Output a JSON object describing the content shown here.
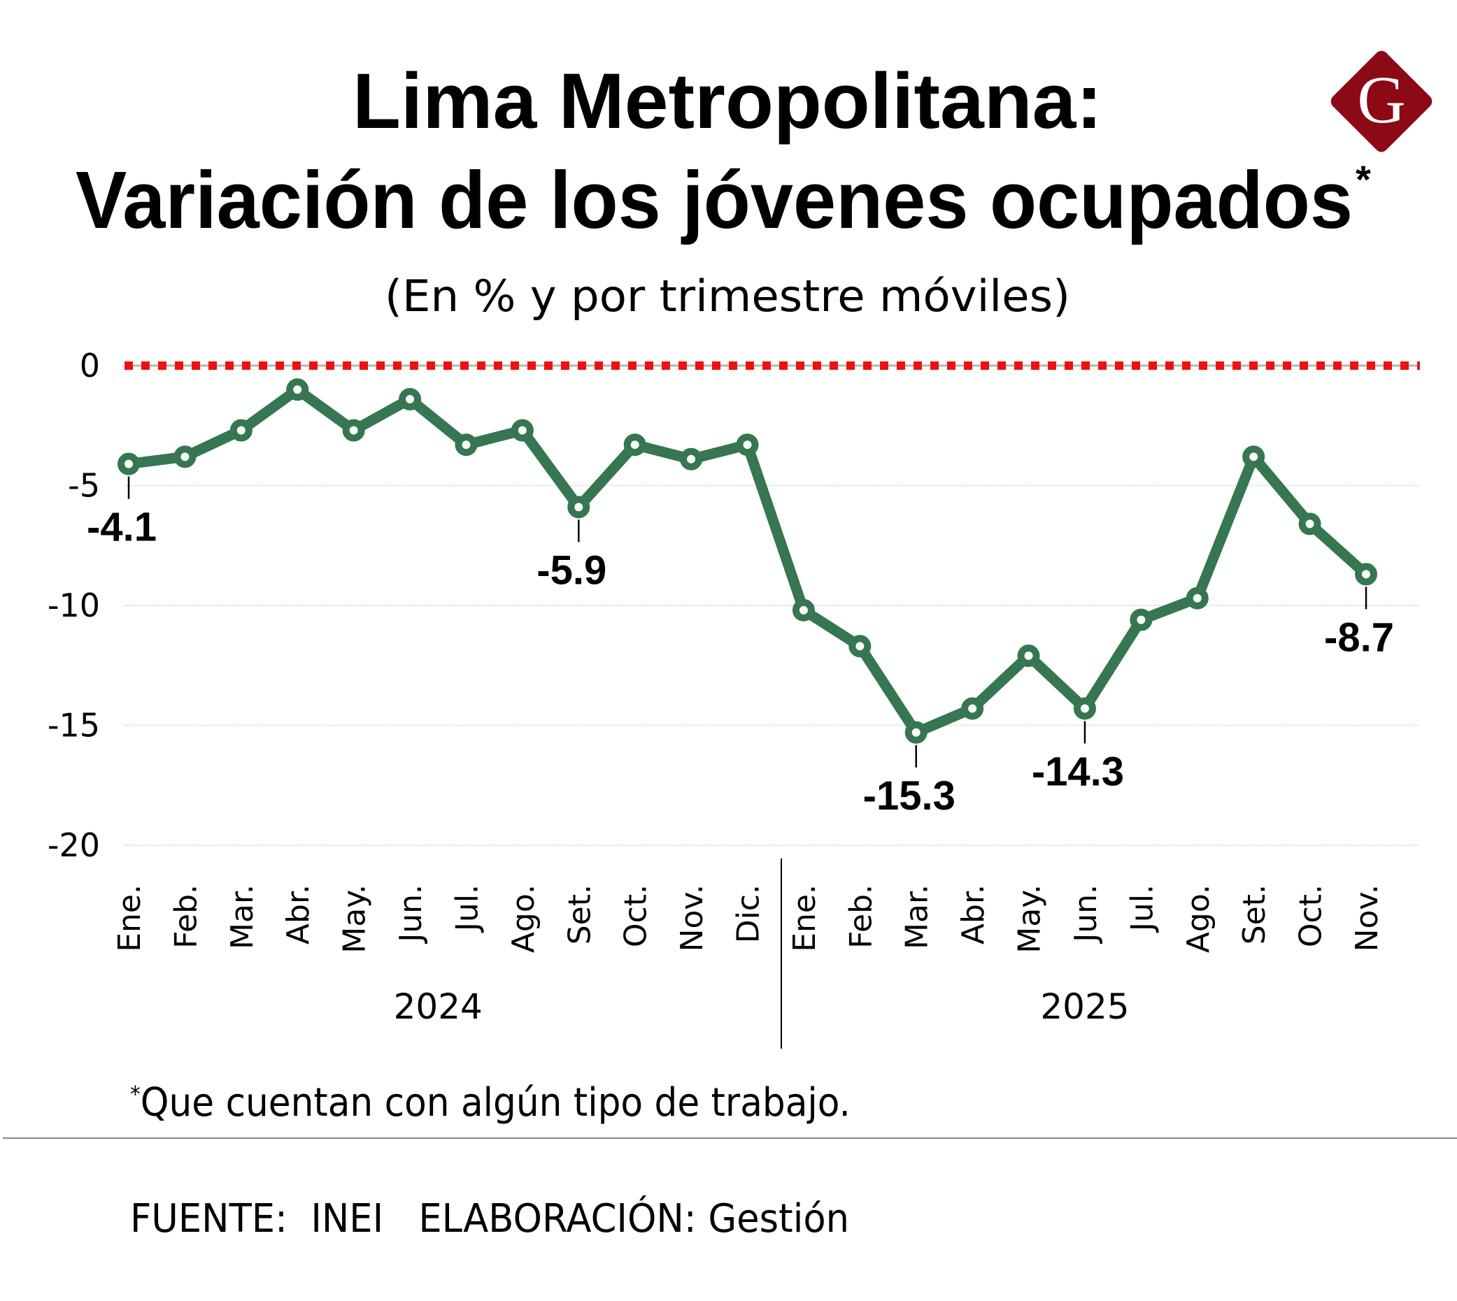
{
  "header": {
    "title_line1": "Lima Metropolitana:",
    "title_line2": "Variación de los jóvenes ocupados",
    "title_asterisk": "*",
    "subtitle": "(En % y por trimestre móviles)",
    "logo_letter": "G",
    "logo_icon": "gestion-diamond-logo-icon"
  },
  "colors": {
    "line": "#367650",
    "marker_fill": "#ffffff",
    "zero_line_dash": "#ee1111",
    "zero_line_base": "#b5b5b5",
    "gridline": "#e2e2e2",
    "logo": "#8c0a16",
    "text": "#000000",
    "divider": "#8a8a8a"
  },
  "chart_data": {
    "type": "line",
    "title": "Lima Metropolitana: Variación de los jóvenes ocupados*",
    "subtitle": "(En % y por trimestre móviles)",
    "xlabel": "",
    "ylabel": "",
    "ylim": [
      -20,
      0
    ],
    "yticks": [
      0,
      -5,
      -10,
      -15,
      -20
    ],
    "ytick_labels": [
      "0",
      "-5",
      "-10",
      "-15",
      "-20"
    ],
    "grid": true,
    "reference_line": {
      "value": 0,
      "style": "red dotted"
    },
    "categories": [
      "Ene.",
      "Feb.",
      "Mar.",
      "Abr.",
      "May.",
      "Jun.",
      "Jul.",
      "Ago.",
      "Set.",
      "Oct.",
      "Nov.",
      "Dic.",
      "Ene.",
      "Feb.",
      "Mar.",
      "Abr.",
      "May.",
      "Jun.",
      "Jul.",
      "Ago.",
      "Set.",
      "Oct.",
      "Nov."
    ],
    "year_groups": [
      {
        "label": "2024",
        "start": 0,
        "end": 11
      },
      {
        "label": "2025",
        "start": 12,
        "end": 22
      }
    ],
    "series": [
      {
        "name": "Variación de los jóvenes ocupados",
        "values": [
          -4.1,
          -3.8,
          -2.7,
          -1.0,
          -2.7,
          -1.4,
          -3.3,
          -2.7,
          -5.9,
          -3.3,
          -3.9,
          -3.3,
          -10.2,
          -11.7,
          -15.3,
          -14.3,
          -12.1,
          -14.3,
          -10.6,
          -9.7,
          -3.8,
          -6.6,
          -8.7
        ]
      }
    ],
    "annotations": [
      {
        "index": 0,
        "text": "-4.1"
      },
      {
        "index": 8,
        "text": "-5.9"
      },
      {
        "index": 14,
        "text": "-15.3"
      },
      {
        "index": 17,
        "text": "-14.3"
      },
      {
        "index": 22,
        "text": "-8.7"
      }
    ],
    "legend": "none"
  },
  "footer": {
    "footnote_marker": "*",
    "footnote": "Que cuentan con algún tipo de trabajo.",
    "source": "FUENTE:  INEI   ELABORACIÓN: Gestión"
  }
}
